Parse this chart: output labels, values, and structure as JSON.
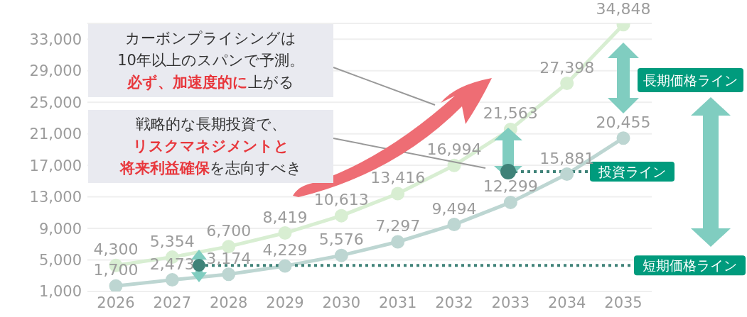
{
  "chart_data": {
    "type": "line",
    "categories": [
      "2026",
      "2027",
      "2028",
      "2029",
      "2030",
      "2031",
      "2032",
      "2033",
      "2034",
      "2035"
    ],
    "series": [
      {
        "color": "#d8eed2",
        "values": [
          4300,
          5354,
          6700,
          8419,
          10613,
          13416,
          16994,
          21563,
          27398,
          34848
        ],
        "value_labels": [
          "4,300",
          "5,354",
          "6,700",
          "8,419",
          "10,613",
          "13,416",
          "16,994",
          "21,563",
          "27,398",
          "34,848"
        ]
      },
      {
        "color": "#bdd6d2",
        "values": [
          1700,
          2473,
          3174,
          4229,
          5576,
          7297,
          9494,
          12299,
          15881,
          20455
        ],
        "value_labels": [
          "1,700",
          "2,473",
          "3,174",
          "4,229",
          "5,576",
          "7,297",
          "9,494",
          "12,299",
          "15,881",
          "20,455"
        ]
      }
    ],
    "ylim": [
      1000,
      35000
    ],
    "yticks": [
      {
        "value": 1000,
        "label": "1,000"
      },
      {
        "value": 5000,
        "label": "5,000"
      },
      {
        "value": 9000,
        "label": "9,000"
      },
      {
        "value": 13000,
        "label": "13,000"
      },
      {
        "value": 17000,
        "label": "17,000"
      },
      {
        "value": 21000,
        "label": "21,000"
      },
      {
        "value": 25000,
        "label": "25,000"
      },
      {
        "value": 29000,
        "label": "29,000"
      },
      {
        "value": 33000,
        "label": "33,000"
      }
    ],
    "grid": "y",
    "marker": "circle",
    "line_style": "solid",
    "ref_lines": [
      {
        "axis": "y",
        "value": 4300,
        "label": "短期価格ライン",
        "color": "#3f8278",
        "line_style": "dotted"
      },
      {
        "axis": "y",
        "value": 16200,
        "label": "投資ライン",
        "color": "#3f8278",
        "line_style": "dotted"
      }
    ],
    "annotations": [
      "カーボンプライシングは",
      "10年以上のスパンで予測。",
      "必ず、加速度的に",
      "上がる",
      "戦略的な長期投資で、",
      "リスクマネジメントと",
      "将来利益確保",
      "を志向すべき",
      "長期価格ライン"
    ]
  }
}
